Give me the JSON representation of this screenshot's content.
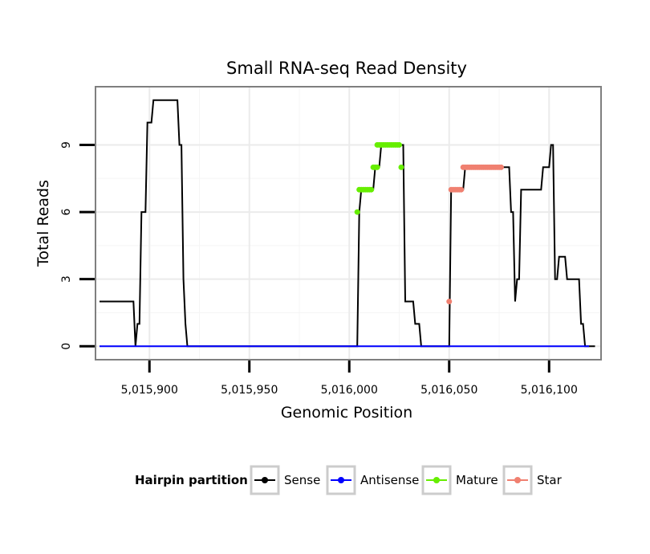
{
  "chart_data": {
    "type": "line",
    "title": "Small RNA-seq Read Density",
    "xlabel": "Genomic Position",
    "ylabel": "Total Reads",
    "xlim": [
      5015873,
      5016126
    ],
    "ylim": [
      -0.6,
      11.6
    ],
    "x_ticks": [
      5015900,
      5015950,
      5016000,
      5016050,
      5016100
    ],
    "x_tick_labels": [
      "5,015,900",
      "5,015,950",
      "5,016,000",
      "5,016,050",
      "5,016,100"
    ],
    "y_ticks": [
      0,
      3,
      6,
      9
    ],
    "y_tick_labels": [
      "0",
      "3",
      "6",
      "9"
    ],
    "grid": true,
    "legend": {
      "title": "Hairpin partition",
      "position": "bottom",
      "entries": [
        {
          "name": "Sense",
          "color": "#000000"
        },
        {
          "name": "Antisense",
          "color": "#0000ff"
        },
        {
          "name": "Mature",
          "color": "#66ee00"
        },
        {
          "name": "Star",
          "color": "#f08070"
        }
      ]
    },
    "series": [
      {
        "name": "Sense",
        "color": "#000000",
        "style": "line",
        "points": [
          [
            5015875,
            2
          ],
          [
            5015892,
            2
          ],
          [
            5015893,
            0
          ],
          [
            5015894,
            1
          ],
          [
            5015895,
            1
          ],
          [
            5015896,
            6
          ],
          [
            5015898,
            6
          ],
          [
            5015899,
            10
          ],
          [
            5015901,
            10
          ],
          [
            5015902,
            11
          ],
          [
            5015914,
            11
          ],
          [
            5015915,
            9
          ],
          [
            5015916,
            9
          ],
          [
            5015917,
            3
          ],
          [
            5015918,
            1
          ],
          [
            5015919,
            0
          ],
          [
            5016004,
            0
          ],
          [
            5016005,
            6
          ],
          [
            5016006,
            7
          ],
          [
            5016012,
            7
          ],
          [
            5016013,
            8
          ],
          [
            5016015,
            8
          ],
          [
            5016016,
            9
          ],
          [
            5016027,
            9
          ],
          [
            5016028,
            2
          ],
          [
            5016032,
            2
          ],
          [
            5016033,
            1
          ],
          [
            5016035,
            1
          ],
          [
            5016036,
            0
          ],
          [
            5016050,
            0
          ],
          [
            5016051,
            7
          ],
          [
            5016057,
            7
          ],
          [
            5016058,
            8
          ],
          [
            5016080,
            8
          ],
          [
            5016081,
            6
          ],
          [
            5016082,
            6
          ],
          [
            5016083,
            2
          ],
          [
            5016084,
            3
          ],
          [
            5016085,
            3
          ],
          [
            5016086,
            7
          ],
          [
            5016096,
            7
          ],
          [
            5016097,
            8
          ],
          [
            5016100,
            8
          ],
          [
            5016101,
            9
          ],
          [
            5016102,
            9
          ],
          [
            5016103,
            3
          ],
          [
            5016104,
            3
          ],
          [
            5016105,
            4
          ],
          [
            5016108,
            4
          ],
          [
            5016109,
            3
          ],
          [
            5016115,
            3
          ],
          [
            5016116,
            1
          ],
          [
            5016117,
            1
          ],
          [
            5016118,
            0
          ],
          [
            5016123,
            0
          ]
        ]
      },
      {
        "name": "Antisense",
        "color": "#0000ff",
        "style": "line",
        "points": [
          [
            5015875,
            0
          ],
          [
            5016120,
            0
          ]
        ]
      },
      {
        "name": "Mature",
        "color": "#66ee00",
        "style": "points",
        "points": [
          [
            5016004,
            6
          ],
          [
            5016005,
            7
          ],
          [
            5016006,
            7
          ],
          [
            5016007,
            7
          ],
          [
            5016008,
            7
          ],
          [
            5016009,
            7
          ],
          [
            5016010,
            7
          ],
          [
            5016011,
            7
          ],
          [
            5016012,
            8
          ],
          [
            5016013,
            8
          ],
          [
            5016014,
            8
          ],
          [
            5016014,
            9
          ],
          [
            5016015,
            9
          ],
          [
            5016016,
            9
          ],
          [
            5016017,
            9
          ],
          [
            5016018,
            9
          ],
          [
            5016019,
            9
          ],
          [
            5016020,
            9
          ],
          [
            5016021,
            9
          ],
          [
            5016022,
            9
          ],
          [
            5016023,
            9
          ],
          [
            5016024,
            9
          ],
          [
            5016025,
            9
          ],
          [
            5016026,
            8
          ]
        ]
      },
      {
        "name": "Star",
        "color": "#f08070",
        "style": "points",
        "points": [
          [
            5016050,
            2
          ],
          [
            5016051,
            7
          ],
          [
            5016052,
            7
          ],
          [
            5016053,
            7
          ],
          [
            5016054,
            7
          ],
          [
            5016055,
            7
          ],
          [
            5016056,
            7
          ],
          [
            5016057,
            8
          ],
          [
            5016058,
            8
          ],
          [
            5016059,
            8
          ],
          [
            5016060,
            8
          ],
          [
            5016061,
            8
          ],
          [
            5016062,
            8
          ],
          [
            5016063,
            8
          ],
          [
            5016064,
            8
          ],
          [
            5016065,
            8
          ],
          [
            5016066,
            8
          ],
          [
            5016067,
            8
          ],
          [
            5016068,
            8
          ],
          [
            5016069,
            8
          ],
          [
            5016070,
            8
          ],
          [
            5016071,
            8
          ],
          [
            5016072,
            8
          ],
          [
            5016073,
            8
          ],
          [
            5016074,
            8
          ],
          [
            5016075,
            8
          ],
          [
            5016076,
            8
          ]
        ]
      }
    ]
  }
}
